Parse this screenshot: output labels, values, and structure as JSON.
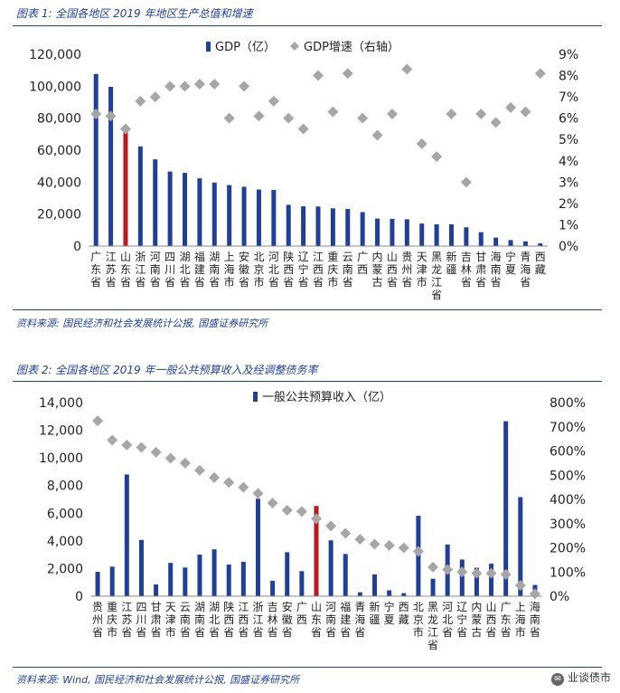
{
  "chart1": {
    "caption": "图表 1:  全国各地区 2019 年地区生产总值和增速",
    "source": "资料来源:  国民经济和社会发展统计公报,  国盛证券研究所",
    "legend": {
      "bar": "GDP（亿）",
      "marker": "GDP增速（右轴）"
    },
    "left_ticks": [
      "0",
      "20,000",
      "40,000",
      "60,000",
      "80,000",
      "100,000",
      "120,000"
    ],
    "right_ticks": [
      "0%",
      "1%",
      "2%",
      "3%",
      "4%",
      "5%",
      "6%",
      "7%",
      "8%",
      "9%"
    ]
  },
  "chart2": {
    "caption": "图表 2:  全国各地区 2019 年一般公共预算收入及经调整债务率",
    "source": "资料来源:  Wind,  国民经济和社会发展统计公报,  国盛证券研究所",
    "legend": {
      "bar": "一般公共预算收入（亿）"
    },
    "left_ticks": [
      "0",
      "2,000",
      "4,000",
      "6,000",
      "8,000",
      "10,000",
      "12,000",
      "14,000"
    ],
    "right_ticks": [
      "0%",
      "100%",
      "200%",
      "300%",
      "400%",
      "500%",
      "600%",
      "700%",
      "800%"
    ]
  },
  "watermark": {
    "text": "业谈债市",
    "icon": "chat-icon"
  },
  "colors": {
    "bar": "#1f3f99",
    "highlight": "#c0171c",
    "marker": "#a6a6a6",
    "accent": "#1f3f99"
  },
  "chart_data": [
    {
      "type": "bar",
      "title": "全国各地区 2019 年地区生产总值和增速",
      "categories": [
        "广东省",
        "江苏省",
        "山东省",
        "浙江省",
        "河南省",
        "四川省",
        "湖北省",
        "福建省",
        "湖南省",
        "上海市",
        "安徽省",
        "北京市",
        "河北省",
        "陕西省",
        "辽宁省",
        "江西省",
        "重庆市",
        "云南省",
        "广西",
        "内蒙古",
        "山西省",
        "贵州省",
        "天津市",
        "黑龙江省",
        "新疆",
        "吉林省",
        "甘肃省",
        "海南省",
        "宁夏",
        "青海省",
        "西藏"
      ],
      "series": [
        {
          "name": "GDP（亿）",
          "axis": "left",
          "values": [
            107671,
            99632,
            71068,
            62352,
            54259,
            46616,
            45828,
            42395,
            39752,
            38155,
            37114,
            35371,
            35105,
            25793,
            24909,
            24758,
            23606,
            23224,
            21237,
            17213,
            17027,
            16769,
            14104,
            13613,
            13597,
            11727,
            8718,
            5309,
            3748,
            2966,
            1698
          ]
        },
        {
          "name": "GDP增速（右轴）",
          "axis": "right",
          "kind": "scatter",
          "values": [
            6.2,
            6.1,
            5.5,
            6.8,
            7.0,
            7.5,
            7.5,
            7.6,
            7.6,
            6.0,
            7.5,
            6.1,
            6.8,
            6.0,
            5.5,
            8.0,
            6.3,
            8.1,
            6.0,
            5.2,
            6.2,
            8.3,
            4.8,
            4.2,
            6.2,
            3.0,
            6.2,
            5.8,
            6.5,
            6.3,
            8.1
          ]
        }
      ],
      "highlight": [
        "山东省"
      ],
      "ylim": [
        0,
        120000
      ],
      "y2lim": [
        0,
        9
      ],
      "legend_position": "top"
    },
    {
      "type": "bar",
      "title": "全国各地区 2019 年一般公共预算收入及经调整债务率",
      "categories": [
        "贵州省",
        "重庆市",
        "江苏省",
        "四川省",
        "甘肃省",
        "天津市",
        "云南省",
        "湖南省",
        "湖北省",
        "陕西省",
        "江西省",
        "浙江省",
        "吉林省",
        "安徽省",
        "广西",
        "山东省",
        "河南省",
        "福建省",
        "青海省",
        "新疆",
        "宁夏",
        "西藏",
        "北京市",
        "黑龙江省",
        "河北省",
        "辽宁省",
        "内蒙古",
        "山西省",
        "广东省",
        "上海市",
        "海南省"
      ],
      "series": [
        {
          "name": "一般公共预算收入（亿）",
          "axis": "left",
          "values": [
            1767,
            2135,
            8802,
            4070,
            850,
            2410,
            2073,
            3007,
            3388,
            2288,
            2487,
            7048,
            1117,
            3183,
            1812,
            6526,
            4041,
            3052,
            282,
            1577,
            424,
            222,
            5817,
            1263,
            3739,
            2652,
            2059,
            2348,
            12654,
            7165,
            814
          ]
        },
        {
          "axis": "right",
          "kind": "scatter",
          "values": [
            725,
            645,
            625,
            615,
            595,
            570,
            550,
            520,
            490,
            470,
            450,
            425,
            385,
            355,
            350,
            320,
            290,
            260,
            235,
            215,
            210,
            200,
            185,
            120,
            110,
            100,
            95,
            95,
            90,
            45,
            10
          ]
        }
      ],
      "highlight": [
        "山东省"
      ],
      "ylim": [
        0,
        14000
      ],
      "y2lim": [
        0,
        800
      ],
      "legend_position": "top"
    }
  ]
}
